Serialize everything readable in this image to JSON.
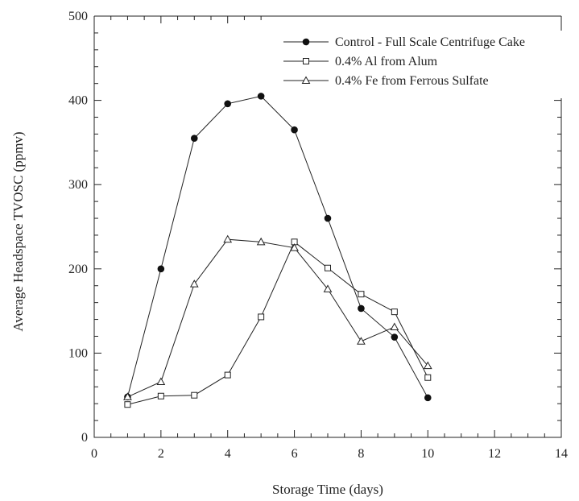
{
  "chart_data": {
    "type": "line",
    "title": "",
    "xlabel": "Storage Time (days)",
    "ylabel": "Average Headspace TVOSC (ppmv)",
    "xlim": [
      0,
      14
    ],
    "ylim": [
      0,
      500
    ],
    "xticks": [
      0,
      2,
      4,
      6,
      8,
      10,
      12,
      14
    ],
    "yticks": [
      0,
      100,
      200,
      300,
      400,
      500
    ],
    "x_minor_step": 0.5,
    "y_minor_step": 20,
    "grid": false,
    "legend_position": "top-right",
    "series": [
      {
        "name": "Control - Full Scale Centrifuge Cake",
        "marker": "filled-circle",
        "x": [
          1,
          2,
          3,
          4,
          5,
          6,
          7,
          8,
          9,
          10
        ],
        "values": [
          48,
          200,
          355,
          396,
          405,
          365,
          260,
          153,
          119,
          47
        ]
      },
      {
        "name": "0.4% Al from Alum",
        "marker": "open-square",
        "x": [
          1,
          2,
          3,
          4,
          5,
          6,
          7,
          8,
          9,
          10
        ],
        "values": [
          39,
          49,
          50,
          74,
          143,
          232,
          201,
          170,
          149,
          71
        ]
      },
      {
        "name": "0.4% Fe from Ferrous Sulfate",
        "marker": "open-triangle",
        "x": [
          1,
          2,
          3,
          4,
          5,
          6,
          7,
          8,
          9,
          10
        ],
        "values": [
          48,
          66,
          182,
          235,
          232,
          225,
          176,
          114,
          131,
          85
        ]
      }
    ]
  }
}
